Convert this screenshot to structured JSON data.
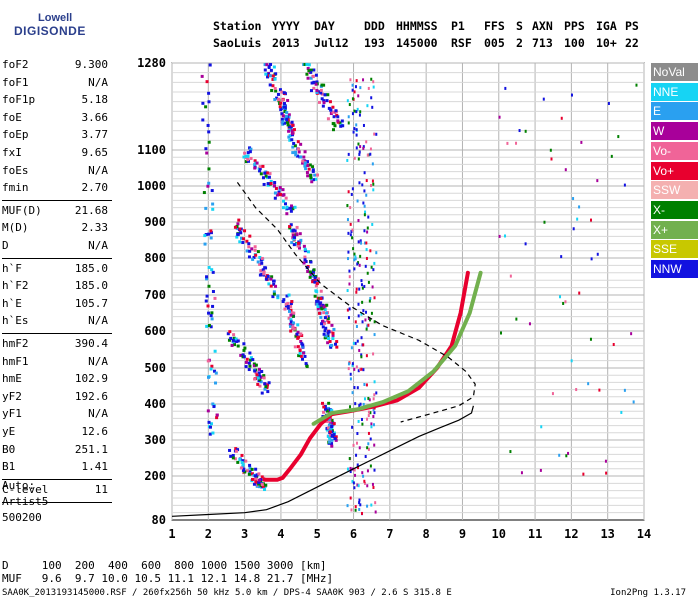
{
  "logo": {
    "line1": "Lowell",
    "line2": "DIGISONDE"
  },
  "header": {
    "labels": [
      "Station",
      "YYYY",
      "DAY",
      "DDD",
      "HHMMSS",
      "P1",
      "FFS",
      "S",
      "AXN",
      "PPS",
      "IGA",
      "PS"
    ],
    "values": [
      "SaoLuis",
      "2013",
      "Jul12",
      "193",
      "145000",
      "RSF",
      "005",
      "2",
      "713",
      "100",
      "10+",
      "22"
    ]
  },
  "params": [
    {
      "label": "foF2",
      "value": "9.300"
    },
    {
      "label": "foF1",
      "value": "N/A"
    },
    {
      "label": "foF1p",
      "value": "5.18"
    },
    {
      "label": "foE",
      "value": "3.66"
    },
    {
      "label": "foEp",
      "value": "3.77"
    },
    {
      "label": "fxI",
      "value": "9.65"
    },
    {
      "label": "foEs",
      "value": "N/A"
    },
    {
      "label": "fmin",
      "value": "2.70"
    },
    {
      "label": "MUF(D)",
      "value": "21.68"
    },
    {
      "label": "M(D)",
      "value": "2.33"
    },
    {
      "label": "D",
      "value": "N/A"
    },
    {
      "label": "h`F",
      "value": "185.0"
    },
    {
      "label": "h`F2",
      "value": "185.0"
    },
    {
      "label": "h`E",
      "value": "105.7"
    },
    {
      "label": "h`Es",
      "value": "N/A"
    },
    {
      "label": "hmF2",
      "value": "390.4"
    },
    {
      "label": "hmF1",
      "value": "N/A"
    },
    {
      "label": "hmE",
      "value": "102.9"
    },
    {
      "label": "yF2",
      "value": "192.6"
    },
    {
      "label": "yF1",
      "value": "N/A"
    },
    {
      "label": "yE",
      "value": "12.6"
    },
    {
      "label": "B0",
      "value": "251.1"
    },
    {
      "label": "B1",
      "value": "1.41"
    },
    {
      "label": "C-level",
      "value": "11"
    }
  ],
  "autoscaling": {
    "line1": "Auto:",
    "line2": "Artist5",
    "line3": "500200"
  },
  "legend": [
    {
      "name": "NoVal",
      "color": "#8c8c8c"
    },
    {
      "name": "NNE",
      "color": "#16d4f4"
    },
    {
      "name": "E",
      "color": "#2aa0f0"
    },
    {
      "name": "W",
      "color": "#a8009a"
    },
    {
      "name": "Vo-",
      "color": "#f06498"
    },
    {
      "name": "Vo+",
      "color": "#e8002e"
    },
    {
      "name": "SSW",
      "color": "#f4b0b0"
    },
    {
      "name": "X-",
      "color": "#008000"
    },
    {
      "name": "X+",
      "color": "#72b04e"
    },
    {
      "name": "SSE",
      "color": "#c8c800"
    },
    {
      "name": "NNW",
      "color": "#1212e0"
    }
  ],
  "chart_data": {
    "type": "scatter",
    "title": "",
    "xlabel": "",
    "ylabel": "",
    "xlim": [
      1,
      14
    ],
    "ylim": [
      80,
      1280
    ],
    "x_ticks": [
      1,
      2,
      3,
      4,
      5,
      6,
      7,
      8,
      9,
      10,
      11,
      12,
      13,
      14
    ],
    "y_ticks": [
      80,
      200,
      300,
      400,
      500,
      600,
      700,
      800,
      900,
      1000,
      1100,
      1280
    ],
    "grid": true,
    "series": [
      {
        "name": "Vo+",
        "style": "trace",
        "color": "#e8002e",
        "points": [
          [
            3.55,
            190
          ],
          [
            3.9,
            190
          ],
          [
            4.05,
            195
          ],
          [
            4.25,
            220
          ],
          [
            4.55,
            260
          ],
          [
            4.8,
            305
          ],
          [
            5.1,
            345
          ],
          [
            5.4,
            372
          ],
          [
            5.9,
            380
          ],
          [
            6.5,
            392
          ],
          [
            7.2,
            410
          ],
          [
            7.8,
            445
          ],
          [
            8.3,
            500
          ],
          [
            8.7,
            560
          ],
          [
            8.95,
            650
          ],
          [
            9.15,
            760
          ]
        ]
      },
      {
        "name": "X+",
        "style": "trace",
        "color": "#72b04e",
        "points": [
          [
            4.9,
            345
          ],
          [
            5.4,
            375
          ],
          [
            6.1,
            385
          ],
          [
            6.8,
            405
          ],
          [
            7.5,
            435
          ],
          [
            8.2,
            490
          ],
          [
            8.8,
            560
          ],
          [
            9.2,
            650
          ],
          [
            9.5,
            760
          ]
        ]
      },
      {
        "name": "",
        "style": "dashed-line",
        "color": "#000000",
        "points": [
          [
            2.8,
            1010
          ],
          [
            3.3,
            940
          ],
          [
            3.9,
            880
          ],
          [
            4.4,
            810
          ],
          [
            5.1,
            730
          ],
          [
            5.9,
            670
          ],
          [
            6.8,
            615
          ],
          [
            7.8,
            575
          ],
          [
            8.6,
            530
          ],
          [
            9.1,
            490
          ],
          [
            9.35,
            455
          ],
          [
            9.3,
            420
          ],
          [
            8.9,
            395
          ],
          [
            8.2,
            375
          ],
          [
            7.3,
            350
          ]
        ]
      },
      {
        "name": "",
        "style": "solid-line",
        "color": "#000000",
        "points": [
          [
            1,
            90
          ],
          [
            2,
            95
          ],
          [
            3,
            100
          ],
          [
            3.6,
            108
          ],
          [
            4.2,
            130
          ],
          [
            4.8,
            160
          ],
          [
            5.4,
            190
          ],
          [
            6.0,
            220
          ],
          [
            6.6,
            250
          ],
          [
            7.2,
            280
          ],
          [
            7.8,
            310
          ],
          [
            8.4,
            335
          ],
          [
            8.9,
            355
          ],
          [
            9.25,
            375
          ],
          [
            9.3,
            395
          ]
        ]
      }
    ]
  },
  "footer": {
    "row1_label": "D",
    "row1_values": [
      "100",
      "200",
      "400",
      "600",
      "800",
      "1000",
      "1500",
      "3000"
    ],
    "row1_unit": "[km]",
    "row2_label": "MUF",
    "row2_values": [
      "9.6",
      "9.7",
      "10.0",
      "10.5",
      "11.1",
      "12.1",
      "14.8",
      "21.7"
    ],
    "row2_unit": "[MHz]",
    "filename": "SAA0K_2013193145000.RSF / 260fx256h 50 kHz 5.0 km / DPS-4 SAA0K 903 / 2.6 S 315.8 E",
    "version": "Ion2Png 1.3.17"
  }
}
